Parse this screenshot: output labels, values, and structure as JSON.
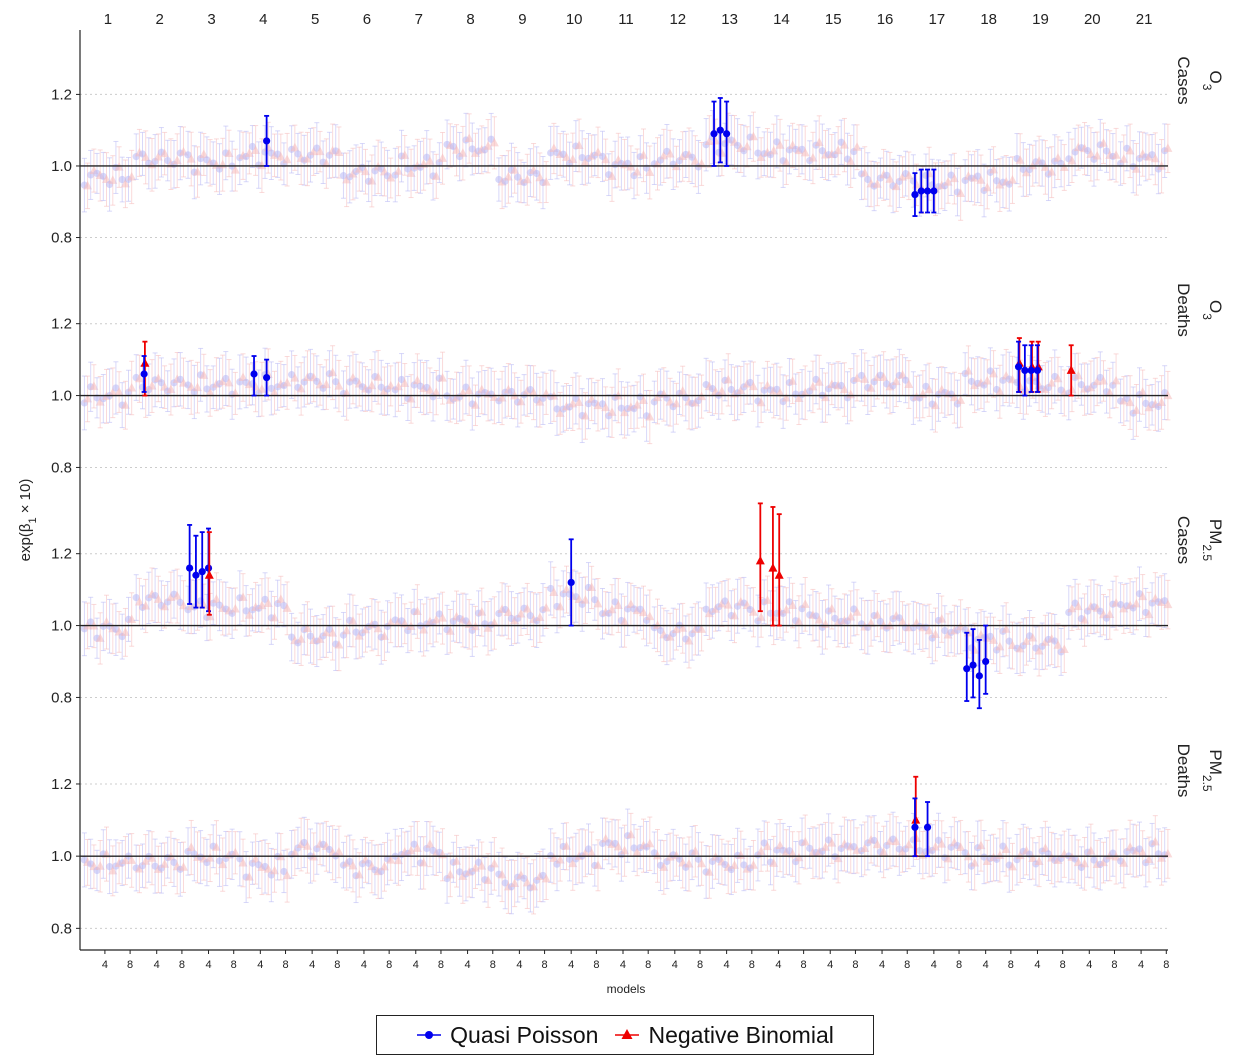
{
  "chart_data": {
    "type": "scatter",
    "groups": [
      "1",
      "2",
      "3",
      "4",
      "5",
      "6",
      "7",
      "8",
      "9",
      "10",
      "11",
      "12",
      "13",
      "14",
      "15",
      "16",
      "17",
      "18",
      "19",
      "20",
      "21"
    ],
    "x_tick_labels": [
      "4",
      "8"
    ],
    "xlabel": "models",
    "ylabel": "exp(β₁ × 10)",
    "ylabel_parts": {
      "pre": "exp(β",
      "sub": "1",
      "post": " × 10)"
    },
    "y_ticks": [
      0.8,
      1.0,
      1.2
    ],
    "reference_line": 1.0,
    "grid": "dashed horizontal",
    "legend": {
      "placement": "bottom",
      "items": [
        {
          "label": "Quasi Poisson",
          "color": "#0000ee",
          "shape": "circle"
        },
        {
          "label": "Negative Binomial",
          "color": "#ee0000",
          "shape": "triangle"
        }
      ]
    },
    "panels": [
      {
        "strip_outcome": "Cases",
        "strip_pollutant": "O",
        "strip_sub": "3",
        "ylim": [
          0.74,
          1.38
        ],
        "baseline": [
          0.97,
          1.02,
          1.01,
          1.03,
          1.03,
          0.98,
          1.0,
          1.05,
          0.97,
          1.03,
          1.0,
          1.02,
          1.06,
          1.04,
          1.04,
          0.96,
          0.95,
          0.96,
          1.0,
          1.04,
          1.02
        ],
        "highlighted": [
          {
            "group": 4,
            "model": 5,
            "series": "Quasi Poisson",
            "value": 1.07,
            "lo": 1.0,
            "hi": 1.14
          },
          {
            "group": 13,
            "model": 2,
            "series": "Quasi Poisson",
            "value": 1.09,
            "lo": 1.0,
            "hi": 1.18
          },
          {
            "group": 13,
            "model": 3,
            "series": "Quasi Poisson",
            "value": 1.1,
            "lo": 1.01,
            "hi": 1.19
          },
          {
            "group": 13,
            "model": 4,
            "series": "Quasi Poisson",
            "value": 1.09,
            "lo": 1.0,
            "hi": 1.18
          },
          {
            "group": 17,
            "model": 1,
            "series": "Quasi Poisson",
            "value": 0.92,
            "lo": 0.86,
            "hi": 0.98
          },
          {
            "group": 17,
            "model": 2,
            "series": "Quasi Poisson",
            "value": 0.93,
            "lo": 0.87,
            "hi": 0.99
          },
          {
            "group": 17,
            "model": 3,
            "series": "Quasi Poisson",
            "value": 0.93,
            "lo": 0.87,
            "hi": 0.99
          },
          {
            "group": 17,
            "model": 4,
            "series": "Quasi Poisson",
            "value": 0.93,
            "lo": 0.87,
            "hi": 0.99
          }
        ]
      },
      {
        "strip_outcome": "Deaths",
        "strip_pollutant": "O",
        "strip_sub": "3",
        "ylim": [
          0.74,
          1.38
        ],
        "baseline": [
          1.0,
          1.03,
          1.03,
          1.03,
          1.04,
          1.03,
          1.02,
          1.0,
          1.0,
          0.97,
          0.97,
          0.99,
          1.02,
          1.01,
          1.02,
          1.04,
          1.0,
          1.04,
          1.03,
          1.03,
          0.98
        ],
        "highlighted": [
          {
            "group": 2,
            "model": 2,
            "series": "Negative Binomial",
            "value": 1.09,
            "lo": 1.0,
            "hi": 1.15
          },
          {
            "group": 2,
            "model": 2,
            "series": "Quasi Poisson",
            "value": 1.06,
            "lo": 1.01,
            "hi": 1.11
          },
          {
            "group": 4,
            "model": 3,
            "series": "Quasi Poisson",
            "value": 1.06,
            "lo": 1.0,
            "hi": 1.11
          },
          {
            "group": 4,
            "model": 5,
            "series": "Quasi Poisson",
            "value": 1.05,
            "lo": 1.0,
            "hi": 1.1
          },
          {
            "group": 19,
            "model": 1,
            "series": "Negative Binomial",
            "value": 1.09,
            "lo": 1.01,
            "hi": 1.16
          },
          {
            "group": 19,
            "model": 1,
            "series": "Quasi Poisson",
            "value": 1.08,
            "lo": 1.01,
            "hi": 1.15
          },
          {
            "group": 19,
            "model": 2,
            "series": "Quasi Poisson",
            "value": 1.07,
            "lo": 1.0,
            "hi": 1.14
          },
          {
            "group": 19,
            "model": 3,
            "series": "Negative Binomial",
            "value": 1.08,
            "lo": 1.01,
            "hi": 1.15
          },
          {
            "group": 19,
            "model": 3,
            "series": "Quasi Poisson",
            "value": 1.07,
            "lo": 1.01,
            "hi": 1.14
          },
          {
            "group": 19,
            "model": 4,
            "series": "Negative Binomial",
            "value": 1.08,
            "lo": 1.01,
            "hi": 1.15
          },
          {
            "group": 19,
            "model": 4,
            "series": "Quasi Poisson",
            "value": 1.07,
            "lo": 1.01,
            "hi": 1.14
          },
          {
            "group": 20,
            "model": 1,
            "series": "Negative Binomial",
            "value": 1.07,
            "lo": 1.0,
            "hi": 1.14
          }
        ]
      },
      {
        "strip_outcome": "Cases",
        "strip_pollutant": "PM",
        "strip_sub": "2.5",
        "ylim": [
          0.74,
          1.38
        ],
        "baseline": [
          0.99,
          1.07,
          1.05,
          1.05,
          0.97,
          0.99,
          1.01,
          1.01,
          1.03,
          1.08,
          1.04,
          0.98,
          1.05,
          1.04,
          1.02,
          1.01,
          0.99,
          0.96,
          0.95,
          1.04,
          1.06
        ],
        "highlighted": [
          {
            "group": 3,
            "model": 1,
            "series": "Quasi Poisson",
            "value": 1.16,
            "lo": 1.06,
            "hi": 1.28
          },
          {
            "group": 3,
            "model": 2,
            "series": "Quasi Poisson",
            "value": 1.14,
            "lo": 1.05,
            "hi": 1.25
          },
          {
            "group": 3,
            "model": 3,
            "series": "Quasi Poisson",
            "value": 1.15,
            "lo": 1.05,
            "hi": 1.26
          },
          {
            "group": 3,
            "model": 4,
            "series": "Quasi Poisson",
            "value": 1.16,
            "lo": 1.04,
            "hi": 1.27
          },
          {
            "group": 3,
            "model": 4,
            "series": "Negative Binomial",
            "value": 1.14,
            "lo": 1.03,
            "hi": 1.26
          },
          {
            "group": 10,
            "model": 4,
            "series": "Quasi Poisson",
            "value": 1.12,
            "lo": 1.0,
            "hi": 1.24
          },
          {
            "group": 14,
            "model": 1,
            "series": "Negative Binomial",
            "value": 1.18,
            "lo": 1.04,
            "hi": 1.34
          },
          {
            "group": 14,
            "model": 3,
            "series": "Negative Binomial",
            "value": 1.16,
            "lo": 1.0,
            "hi": 1.33
          },
          {
            "group": 14,
            "model": 4,
            "series": "Negative Binomial",
            "value": 1.14,
            "lo": 1.0,
            "hi": 1.31
          },
          {
            "group": 18,
            "model": 1,
            "series": "Quasi Poisson",
            "value": 0.88,
            "lo": 0.79,
            "hi": 0.98
          },
          {
            "group": 18,
            "model": 2,
            "series": "Quasi Poisson",
            "value": 0.89,
            "lo": 0.8,
            "hi": 0.99
          },
          {
            "group": 18,
            "model": 3,
            "series": "Quasi Poisson",
            "value": 0.86,
            "lo": 0.77,
            "hi": 0.96
          },
          {
            "group": 18,
            "model": 4,
            "series": "Quasi Poisson",
            "value": 0.9,
            "lo": 0.81,
            "hi": 1.0
          }
        ]
      },
      {
        "strip_outcome": "Deaths",
        "strip_pollutant": "PM",
        "strip_sub": "2.5",
        "ylim": [
          0.74,
          1.38
        ],
        "baseline": [
          0.98,
          0.98,
          1.0,
          0.97,
          1.02,
          0.97,
          1.01,
          0.96,
          0.93,
          1.0,
          1.03,
          0.99,
          0.98,
          1.01,
          1.02,
          1.03,
          1.02,
          1.0,
          1.0,
          0.99,
          1.01
        ],
        "highlighted": [
          {
            "group": 17,
            "model": 1,
            "series": "Negative Binomial",
            "value": 1.1,
            "lo": 1.0,
            "hi": 1.22
          },
          {
            "group": 17,
            "model": 1,
            "series": "Quasi Poisson",
            "value": 1.08,
            "lo": 1.0,
            "hi": 1.16
          },
          {
            "group": 17,
            "model": 3,
            "series": "Quasi Poisson",
            "value": 1.08,
            "lo": 1.0,
            "hi": 1.15
          }
        ]
      }
    ]
  }
}
